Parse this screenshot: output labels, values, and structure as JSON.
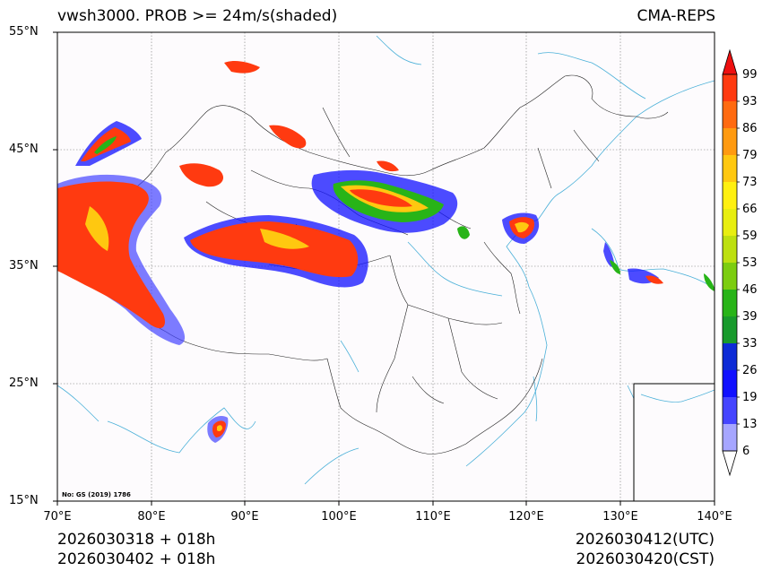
{
  "header": {
    "title": "vwsh3000. PROB >= 24m/s(shaded)",
    "model": "CMA-REPS"
  },
  "axes": {
    "lat_labels": [
      "55°N",
      "45°N",
      "35°N",
      "25°N",
      "15°N"
    ],
    "lon_labels": [
      "70°E",
      "80°E",
      "90°E",
      "100°E",
      "110°E",
      "120°E",
      "130°E",
      "140°E"
    ]
  },
  "colorbar": {
    "levels": [
      "6",
      "13",
      "19",
      "26",
      "33",
      "39",
      "46",
      "53",
      "59",
      "66",
      "73",
      "79",
      "86",
      "93",
      "99"
    ],
    "colors": [
      "#ffffff",
      "#a6a6ff",
      "#4545ff",
      "#1010ff",
      "#0d2bd6",
      "#189a2c",
      "#28b418",
      "#7ccd10",
      "#bde010",
      "#e8ee10",
      "#fff010",
      "#ffc810",
      "#ff9a10",
      "#ff6a10",
      "#ff3a10",
      "#ee1010"
    ]
  },
  "footer": {
    "run_utc": "2026030318  +  018h",
    "run_cst": "2026030402  +  018h",
    "valid_utc": "2026030412(UTC)",
    "valid_cst": "2026030420(CST)",
    "map_credit": "No: GS (2019) 1786"
  }
}
